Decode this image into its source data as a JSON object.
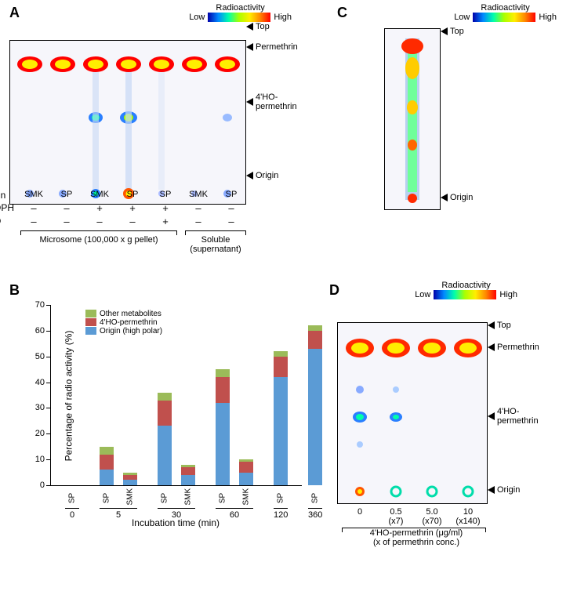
{
  "panels": {
    "A": "A",
    "B": "B",
    "C": "C",
    "D": "D"
  },
  "radioactivity_legend": {
    "title": "Radioactivity",
    "low": "Low",
    "high": "High"
  },
  "tlc_row_labels": {
    "top": "Top",
    "permethrin": "Permethrin",
    "hop": "4'HO-\npermethrin",
    "origin": "Origin"
  },
  "panelA": {
    "strain_label": "Strain",
    "nadph_label": "NADPH",
    "pbo_label": "PBO",
    "fraction_microsome": "Microsome (100,000 x g pellet)",
    "fraction_soluble": "Soluble\n(supernatant)",
    "columns": [
      {
        "strain": "SMK",
        "nadph": "–",
        "pbo": "–"
      },
      {
        "strain": "SP",
        "nadph": "–",
        "pbo": "–"
      },
      {
        "strain": "SMK",
        "nadph": "+",
        "pbo": "–"
      },
      {
        "strain": "SP",
        "nadph": "+",
        "pbo": "–"
      },
      {
        "strain": "SP",
        "nadph": "+",
        "pbo": "+"
      },
      {
        "strain": "SMK",
        "nadph": "–",
        "pbo": "–"
      },
      {
        "strain": "SP",
        "nadph": "–",
        "pbo": "–"
      }
    ]
  },
  "panelB": {
    "y_axis_title": "Percentage of radio activity (%)",
    "x_axis_title": "Incubation time (min)",
    "ylim": [
      0,
      70
    ],
    "ytick_step": 10,
    "colors": {
      "origin": "#5b9bd5",
      "hop": "#c0504d",
      "other": "#9bbb59"
    },
    "legend": {
      "other": "Other metabolites",
      "hop": "4'HO-permethrin",
      "origin": "Origin (high polar)"
    },
    "groups": [
      {
        "time": "0",
        "bars": [
          {
            "strain": "SP",
            "origin": 0,
            "hop": 0,
            "other": 0
          }
        ]
      },
      {
        "time": "5",
        "bars": [
          {
            "strain": "SP",
            "origin": 6,
            "hop": 6,
            "other": 3
          },
          {
            "strain": "SMK",
            "origin": 2,
            "hop": 2,
            "other": 1
          }
        ]
      },
      {
        "time": "30",
        "bars": [
          {
            "strain": "SP",
            "origin": 23,
            "hop": 10,
            "other": 3
          },
          {
            "strain": "SMK",
            "origin": 4,
            "hop": 3,
            "other": 1
          }
        ]
      },
      {
        "time": "60",
        "bars": [
          {
            "strain": "SP",
            "origin": 32,
            "hop": 10,
            "other": 3
          },
          {
            "strain": "SMK",
            "origin": 5,
            "hop": 4,
            "other": 1
          }
        ]
      },
      {
        "time": "120",
        "bars": [
          {
            "strain": "SP",
            "origin": 42,
            "hop": 8,
            "other": 2
          }
        ]
      },
      {
        "time": "360",
        "bars": [
          {
            "strain": "SP",
            "origin": 53,
            "hop": 7,
            "other": 2
          }
        ]
      }
    ]
  },
  "panelD": {
    "x_axis_title": "4'HO-permethrin (μg/ml)\n(x of permethrin conc.)",
    "columns": [
      {
        "conc": "0",
        "mult": ""
      },
      {
        "conc": "0.5",
        "mult": "(x7)"
      },
      {
        "conc": "5.0",
        "mult": "(x70)"
      },
      {
        "conc": "10",
        "mult": "(x140)"
      }
    ]
  }
}
